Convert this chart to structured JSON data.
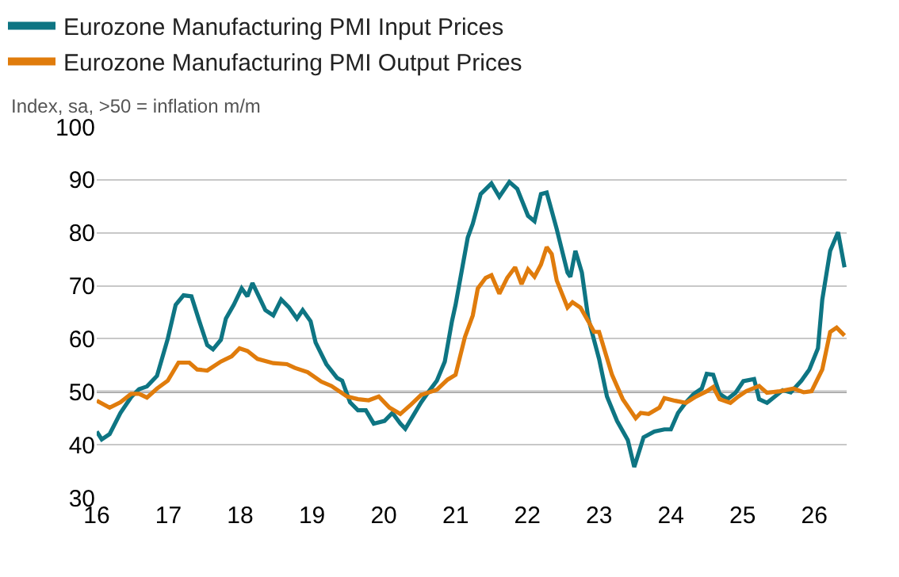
{
  "chart_data": {
    "type": "line",
    "subtitle": "Index, sa, >50 = inflation m/m",
    "series": [
      {
        "name": "Eurozone Manufacturing PMI Input Prices",
        "color": "#0e7583",
        "x": [
          16.0,
          16.07,
          16.18,
          16.33,
          16.48,
          16.59,
          16.7,
          16.84,
          16.99,
          17.1,
          17.21,
          17.32,
          17.43,
          17.54,
          17.62,
          17.73,
          17.8,
          17.91,
          18.02,
          18.1,
          18.17,
          18.28,
          18.35,
          18.46,
          18.57,
          18.68,
          18.79,
          18.87,
          18.98,
          19.05,
          19.2,
          19.35,
          19.42,
          19.53,
          19.64,
          19.75,
          19.86,
          20.01,
          20.12,
          20.23,
          20.3,
          20.41,
          20.52,
          20.63,
          20.74,
          20.85,
          20.95,
          21.0,
          21.17,
          21.24,
          21.35,
          21.5,
          21.61,
          21.75,
          21.86,
          22.01,
          22.1,
          22.19,
          22.27,
          22.41,
          22.56,
          22.6,
          22.67,
          22.76,
          22.85,
          23.0,
          23.11,
          23.25,
          23.4,
          23.49,
          23.62,
          23.77,
          23.91,
          24.0,
          24.1,
          24.21,
          24.32,
          24.43,
          24.5,
          24.59,
          24.68,
          24.79,
          24.9,
          25.01,
          25.16,
          25.23,
          25.34,
          25.45,
          25.56,
          25.67,
          25.82,
          25.93,
          26.05,
          26.11,
          26.22,
          26.33,
          26.42
        ],
        "values": [
          42.5,
          41,
          42,
          46,
          49,
          50.5,
          51,
          53,
          60,
          66.4,
          68.2,
          68,
          63.3,
          58.8,
          58,
          59.8,
          63.8,
          66.4,
          69.5,
          68,
          70.5,
          67.4,
          65.4,
          64.4,
          67.4,
          65.9,
          63.8,
          65.4,
          63.3,
          59.3,
          55.2,
          52.6,
          52.1,
          48,
          46.5,
          46.5,
          44,
          44.5,
          46,
          44,
          43,
          45.5,
          48,
          50.1,
          52.1,
          55.7,
          63.3,
          66.4,
          79.1,
          81.7,
          87.3,
          89.3,
          86.8,
          89.6,
          88.3,
          83.2,
          82.2,
          87.3,
          87.6,
          80.7,
          72.5,
          71.7,
          76.6,
          72.5,
          63.8,
          56.2,
          49.1,
          44.5,
          40.9,
          35.8,
          41.4,
          42.5,
          42.9,
          42.9,
          46,
          48,
          49.6,
          50.6,
          53.4,
          53.2,
          49.6,
          48.6,
          49.8,
          52.0,
          52.4,
          48.6,
          47.9,
          49.1,
          50.3,
          49.9,
          52.1,
          54.2,
          58.2,
          67.4,
          76.6,
          80.1,
          73.5
        ]
      },
      {
        "name": "Eurozone Manufacturing PMI Output Prices",
        "color": "#e07c0c",
        "x": [
          16.0,
          16.18,
          16.33,
          16.48,
          16.59,
          16.7,
          16.84,
          16.99,
          17.14,
          17.29,
          17.4,
          17.54,
          17.73,
          17.88,
          17.99,
          18.1,
          18.24,
          18.46,
          18.65,
          18.76,
          18.94,
          19.13,
          19.27,
          19.49,
          19.64,
          19.79,
          19.93,
          20.08,
          20.23,
          20.38,
          20.52,
          20.74,
          20.89,
          21.0,
          21.13,
          21.24,
          21.31,
          21.42,
          21.5,
          21.61,
          21.72,
          21.83,
          21.92,
          22.01,
          22.1,
          22.19,
          22.27,
          22.34,
          22.41,
          22.56,
          22.63,
          22.74,
          22.85,
          22.93,
          23.0,
          23.18,
          23.33,
          23.51,
          23.58,
          23.69,
          23.84,
          23.91,
          24.06,
          24.21,
          24.35,
          24.5,
          24.59,
          24.68,
          24.83,
          24.94,
          25.05,
          25.23,
          25.34,
          25.52,
          25.71,
          25.85,
          25.96,
          26.11,
          26.22,
          26.31,
          26.42
        ],
        "values": [
          48.3,
          47,
          48,
          49.6,
          49.6,
          48.9,
          50.6,
          52.1,
          55.5,
          55.5,
          54.2,
          54,
          55.7,
          56.7,
          58.2,
          57.7,
          56.2,
          55.4,
          55.2,
          54.5,
          53.7,
          51.9,
          51.1,
          49.1,
          48.6,
          48.4,
          49.1,
          47,
          45.8,
          47.6,
          49.4,
          50.4,
          52.3,
          53.2,
          60.3,
          64.4,
          69.5,
          71.5,
          72,
          68.5,
          71.5,
          73.5,
          70.3,
          73.1,
          71.7,
          74,
          77.3,
          76,
          71,
          65.9,
          66.9,
          65.9,
          63.3,
          61.3,
          61.3,
          53.2,
          48.6,
          45,
          46,
          45.8,
          47,
          48.8,
          48.3,
          47.9,
          49.1,
          50.1,
          50.9,
          48.6,
          47.9,
          49.1,
          50.1,
          51.1,
          49.8,
          50.1,
          50.6,
          49.9,
          50.1,
          54.2,
          61.3,
          62.1,
          60.6
        ]
      }
    ],
    "xlim": [
      16,
      26.45
    ],
    "xticks": [
      16,
      17,
      18,
      19,
      20,
      21,
      22,
      23,
      24,
      25,
      26
    ],
    "ylim": [
      30,
      100
    ],
    "yticks": [
      30,
      40,
      50,
      60,
      70,
      80,
      90,
      100
    ],
    "ref_lines": [
      {
        "axis": "y",
        "value": 50,
        "color": "#7f7f7f"
      }
    ],
    "grid": "y",
    "legend": "top left",
    "marker": "none",
    "line_style": "solid"
  }
}
